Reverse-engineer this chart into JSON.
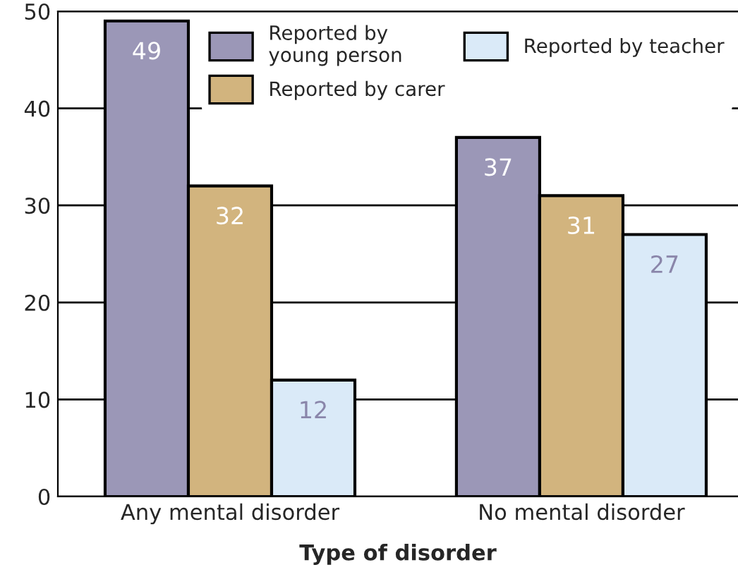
{
  "chart_data": {
    "type": "bar",
    "xlabel": "Type of disorder",
    "categories": [
      "Any mental disorder",
      "No mental disorder"
    ],
    "series": [
      {
        "name": "Reported by\nyoung person",
        "color": "#9b97b7",
        "values": [
          49,
          37
        ]
      },
      {
        "name": "Reported by carer",
        "color": "#d2b47e",
        "values": [
          32,
          31
        ]
      },
      {
        "name": "Reported by teacher",
        "color": "#daeaf8",
        "values": [
          12,
          27
        ]
      }
    ],
    "ylim": [
      0,
      50
    ],
    "yticks": [
      0,
      10,
      20,
      30,
      40,
      50
    ],
    "grid": "y",
    "legend": "top right",
    "data_labels": true
  }
}
